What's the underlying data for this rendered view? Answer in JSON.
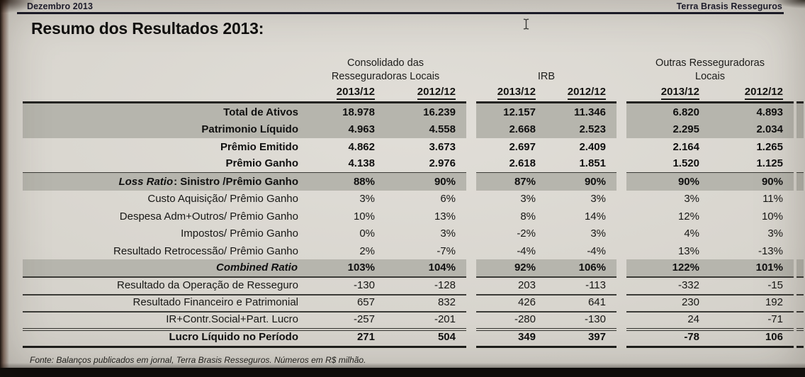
{
  "header": {
    "period": "Dezembro 2013",
    "company": "Terra Brasis Resseguros"
  },
  "title": "Resumo dos Resultados 2013:",
  "table": {
    "group_headers": [
      {
        "line1": "Consolidado das",
        "line2": "Resseguradoras Locais"
      },
      {
        "line1": "",
        "line2": "IRB"
      },
      {
        "line1": "Outras Resseguradoras",
        "line2": "Locais"
      }
    ],
    "year_columns": [
      "2013/12",
      "2012/12",
      "2013/12",
      "2012/12",
      "2013/12",
      "2012/12"
    ],
    "rows": [
      {
        "label": "Total de Ativos",
        "bold": true,
        "highlight": true,
        "rule_below": "none",
        "values": [
          "18.978",
          "16.239",
          "12.157",
          "11.346",
          "6.820",
          "4.893"
        ]
      },
      {
        "label": "Patrimonio Líquido",
        "bold": true,
        "highlight": true,
        "rule_below": "none",
        "values": [
          "4.963",
          "4.558",
          "2.668",
          "2.523",
          "2.295",
          "2.034"
        ]
      },
      {
        "label": "Prêmio Emitido",
        "bold": true,
        "highlight": false,
        "rule_below": "none",
        "values": [
          "4.862",
          "3.673",
          "2.697",
          "2.409",
          "2.164",
          "1.265"
        ]
      },
      {
        "label": "Prêmio Ganho",
        "bold": true,
        "highlight": false,
        "rule_below": "thin",
        "values": [
          "4.138",
          "2.976",
          "2.618",
          "1.851",
          "1.520",
          "1.125"
        ]
      },
      {
        "label_em": "Loss Ratio",
        "label": ": Sinistro /Prêmio Ganho",
        "bold": true,
        "highlight": true,
        "rule_below": "none",
        "values": [
          "88%",
          "90%",
          "87%",
          "90%",
          "90%",
          "90%"
        ]
      },
      {
        "label": "Custo Aquisição/ Prêmio Ganho",
        "bold": false,
        "highlight": false,
        "rule_below": "none",
        "values": [
          "3%",
          "6%",
          "3%",
          "3%",
          "3%",
          "11%"
        ]
      },
      {
        "label": "Despesa Adm+Outros/ Prêmio Ganho",
        "bold": false,
        "highlight": false,
        "rule_below": "none",
        "values": [
          "10%",
          "13%",
          "8%",
          "14%",
          "12%",
          "10%"
        ]
      },
      {
        "label": "Impostos/ Prêmio Ganho",
        "bold": false,
        "highlight": false,
        "rule_below": "none",
        "values": [
          "0%",
          "3%",
          "-2%",
          "3%",
          "4%",
          "3%"
        ]
      },
      {
        "label": "Resultado Retrocessão/ Prêmio Ganho",
        "bold": false,
        "highlight": false,
        "rule_below": "none",
        "values": [
          "2%",
          "-7%",
          "-4%",
          "-4%",
          "13%",
          "-13%"
        ]
      },
      {
        "label_em": "Combined Ratio",
        "label": "",
        "bold": true,
        "highlight": true,
        "rule_below": "thin",
        "values": [
          "103%",
          "104%",
          "92%",
          "106%",
          "122%",
          "101%"
        ]
      },
      {
        "label": "Resultado da Operação de Resseguro",
        "bold": false,
        "highlight": false,
        "rule_below": "thin",
        "values": [
          "-130",
          "-128",
          "203",
          "-113",
          "-332",
          "-15"
        ]
      },
      {
        "label": "Resultado Financeiro e Patrimonial",
        "bold": false,
        "highlight": false,
        "rule_below": "thin",
        "values": [
          "657",
          "832",
          "426",
          "641",
          "230",
          "192"
        ]
      },
      {
        "label": "IR+Contr.Social+Part. Lucro",
        "bold": false,
        "highlight": false,
        "rule_below": "double",
        "values": [
          "-257",
          "-201",
          "-280",
          "-130",
          "24",
          "-71"
        ]
      },
      {
        "label": "Lucro Líquido no Período",
        "bold": true,
        "highlight": false,
        "rule_below": "thick",
        "values": [
          "271",
          "504",
          "349",
          "397",
          "-78",
          "106"
        ]
      }
    ]
  },
  "footnote": "Fonte: Balanços publicados em jornal, Terra Brasis Resseguros. Números em R$ milhão.",
  "cursor": {
    "type": "i-beam"
  },
  "colors": {
    "page_bg": "#d8d5ce",
    "highlight_band": "#b6b5ad",
    "rule": "#3b3b37",
    "header_rule": "#1a1a28",
    "bottom_bar": "#0b0a09"
  }
}
